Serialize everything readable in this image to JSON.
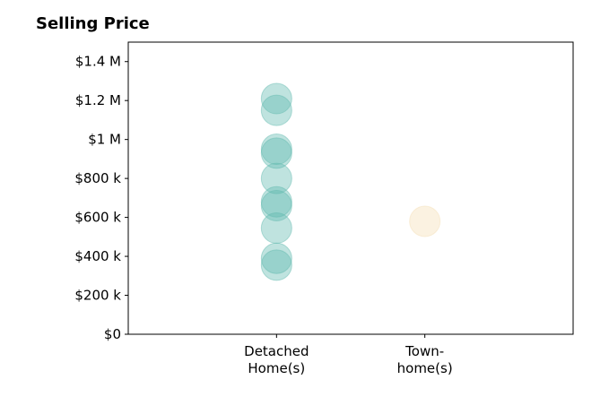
{
  "chart_data": {
    "type": "scatter",
    "title": "Selling Price",
    "xlabel": "",
    "ylabel": "",
    "categories": [
      [
        "Detached",
        "Home(s)"
      ],
      [
        "Town-",
        "home(s)"
      ]
    ],
    "ylim": [
      0,
      1500000
    ],
    "yticks": [
      0,
      200000,
      400000,
      600000,
      800000,
      1000000,
      1200000,
      1400000
    ],
    "ytick_labels": [
      "$0",
      "$200 k",
      "$400 k",
      "$600 k",
      "$800 k",
      "$1 M",
      "$1.2 M",
      "$1.4 M"
    ],
    "grid": false,
    "series": [
      {
        "category_index": 0,
        "color": "#5fb8ae",
        "values": [
          1210000,
          1150000,
          950000,
          930000,
          800000,
          680000,
          660000,
          545000,
          390000,
          355000
        ]
      },
      {
        "category_index": 1,
        "color": "#f5deb3",
        "values": [
          580000
        ]
      }
    ]
  }
}
